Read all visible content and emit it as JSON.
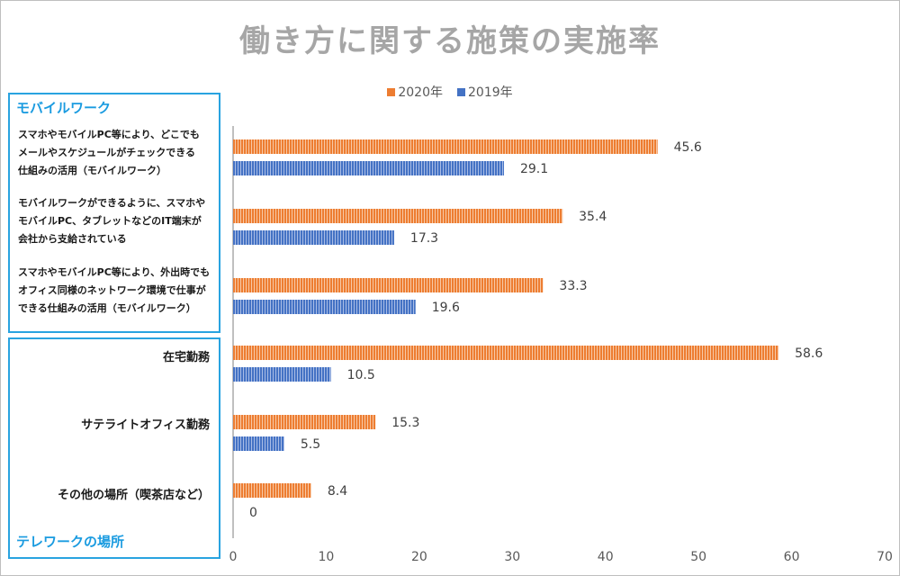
{
  "chart_data": {
    "type": "bar",
    "orientation": "horizontal",
    "title": "働き方に関する施策の実施率",
    "categories": [
      "スマホやモバイルPC等により、どこでも\nメールやスケジュールがチェックできる\n仕組みの活用（モバイルワーク）",
      "モバイルワークができるように、スマホや\nモバイルPC、タブレットなどのIT端末が\n会社から支給されている",
      "スマホやモバイルPC等により、外出時でも\nオフィス同様のネットワーク環境で仕事が\nできる仕組みの活用（モバイルワーク）",
      "在宅勤務",
      "サテライトオフィス勤務",
      "その他の場所（喫茶店など）"
    ],
    "series": [
      {
        "name": "2020年",
        "values": [
          45.6,
          35.4,
          33.3,
          58.6,
          15.3,
          8.4
        ],
        "color": "#ed7d31"
      },
      {
        "name": "2019年",
        "values": [
          29.1,
          17.3,
          19.6,
          10.5,
          5.5,
          0
        ],
        "color": "#4472c4"
      }
    ],
    "xlim": [
      0,
      70
    ],
    "xticks": [
      "0",
      "10",
      "20",
      "30",
      "40",
      "50",
      "60",
      "70"
    ],
    "grid": false,
    "legend_position": "top",
    "group_labels": [
      "モバイルワーク",
      "テレワークの場所"
    ]
  }
}
